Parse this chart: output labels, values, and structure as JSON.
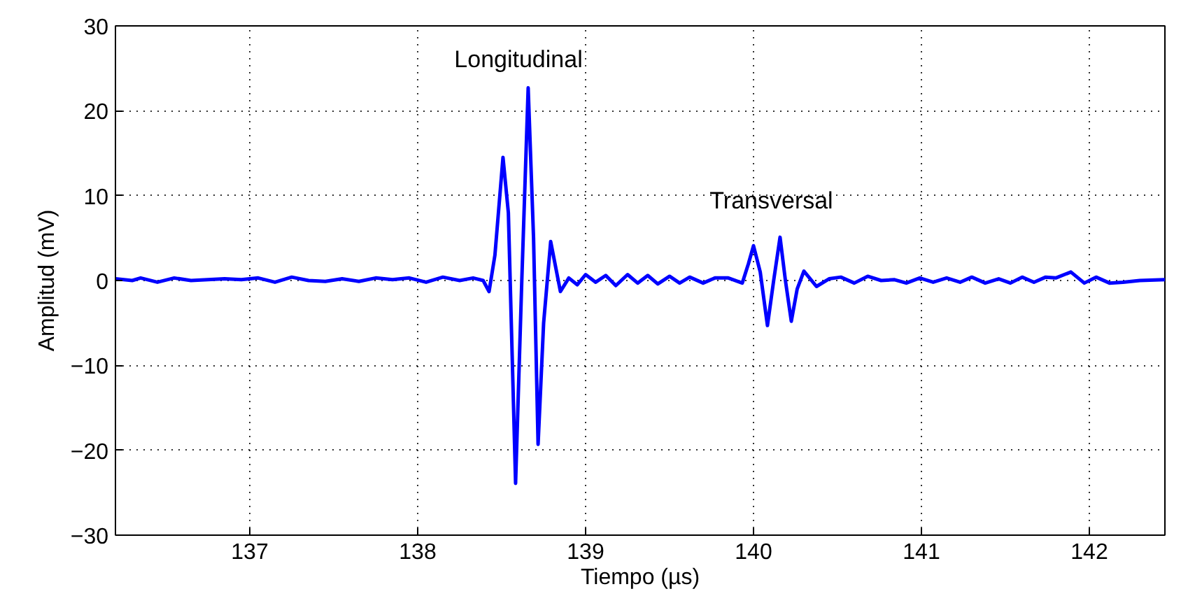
{
  "chart_data": {
    "type": "line",
    "xlabel": "Tiempo (µs)",
    "ylabel": "Amplitud (mV)",
    "xlim": [
      136.2,
      142.45
    ],
    "ylim": [
      -30,
      30
    ],
    "xticks": [
      137,
      138,
      139,
      140,
      141,
      142
    ],
    "yticks": [
      -30,
      -20,
      -10,
      0,
      10,
      20,
      30
    ],
    "grid": true,
    "line_style": "solid",
    "marker": "none",
    "annotations": [
      "Longitudinal",
      "Transversal"
    ],
    "x": [
      136.2,
      136.3,
      136.35,
      136.45,
      136.55,
      136.65,
      136.75,
      136.85,
      136.95,
      137.05,
      137.15,
      137.25,
      137.35,
      137.45,
      137.55,
      137.65,
      137.75,
      137.85,
      137.95,
      138.05,
      138.15,
      138.25,
      138.33,
      138.39,
      138.425,
      138.46,
      138.508,
      138.54,
      138.583,
      138.62,
      138.658,
      138.69,
      138.717,
      138.75,
      138.792,
      138.85,
      138.9,
      138.95,
      139.0,
      139.06,
      139.12,
      139.18,
      139.25,
      139.31,
      139.37,
      139.43,
      139.5,
      139.56,
      139.62,
      139.7,
      139.77,
      139.85,
      139.933,
      139.97,
      140.0,
      140.04,
      140.083,
      140.12,
      140.158,
      140.19,
      140.225,
      140.26,
      140.3,
      140.375,
      140.45,
      140.52,
      140.6,
      140.68,
      140.76,
      140.84,
      140.91,
      140.99,
      141.07,
      141.15,
      141.23,
      141.3,
      141.38,
      141.46,
      141.53,
      141.6,
      141.67,
      141.74,
      141.8,
      141.89,
      141.97,
      142.04,
      142.12,
      142.2,
      142.3,
      142.45
    ],
    "series": [
      {
        "color": "#0000ff",
        "values": [
          0.2,
          0.0,
          0.3,
          -0.2,
          0.3,
          0.0,
          0.1,
          0.2,
          0.1,
          0.3,
          -0.2,
          0.4,
          0.0,
          -0.1,
          0.2,
          -0.1,
          0.3,
          0.1,
          0.3,
          -0.2,
          0.4,
          0.0,
          0.3,
          0.0,
          -1.3,
          3,
          14.5,
          8,
          -23.9,
          0,
          22.7,
          5,
          -19.3,
          -5,
          4.6,
          -1.3,
          0.3,
          -0.5,
          0.7,
          -0.2,
          0.6,
          -0.6,
          0.7,
          -0.3,
          0.6,
          -0.4,
          0.5,
          -0.3,
          0.4,
          -0.3,
          0.3,
          0.3,
          -0.3,
          2,
          4.1,
          1,
          -5.3,
          0,
          5.1,
          0,
          -4.8,
          -1,
          1.1,
          -0.7,
          0.2,
          0.4,
          -0.3,
          0.5,
          0.0,
          0.1,
          -0.3,
          0.3,
          -0.2,
          0.3,
          -0.2,
          0.4,
          -0.3,
          0.2,
          -0.3,
          0.4,
          -0.2,
          0.4,
          0.3,
          1.0,
          -0.3,
          0.4,
          -0.3,
          -0.2,
          0.0,
          0.1
        ]
      }
    ]
  }
}
